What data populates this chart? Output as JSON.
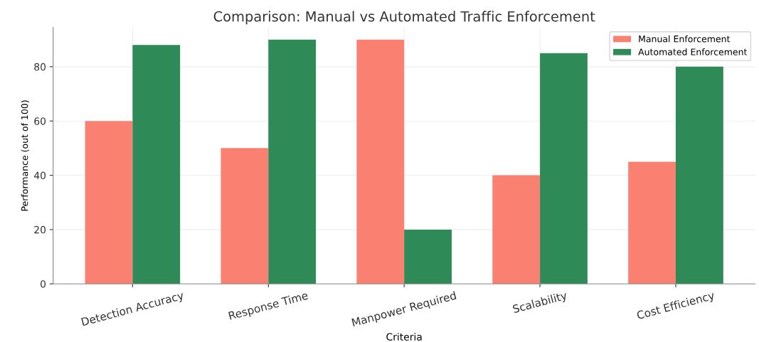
{
  "chart_data": {
    "type": "bar",
    "title": "Comparison: Manual vs Automated Traffic Enforcement",
    "xlabel": "Criteria",
    "ylabel": "Performance (out of 100)",
    "categories": [
      "Detection Accuracy",
      "Response Time",
      "Manpower Required",
      "Scalability",
      "Cost Efficiency"
    ],
    "series": [
      {
        "name": "Manual Enforcement",
        "color": "#fa8072",
        "values": [
          60,
          50,
          90,
          40,
          45
        ]
      },
      {
        "name": "Automated Enforcement",
        "color": "#2e8b57",
        "values": [
          88,
          90,
          20,
          85,
          80
        ]
      }
    ],
    "ylim": [
      0,
      94.5
    ],
    "yticks": [
      0,
      20,
      40,
      60,
      80
    ],
    "grid": true,
    "legend": "top right"
  }
}
